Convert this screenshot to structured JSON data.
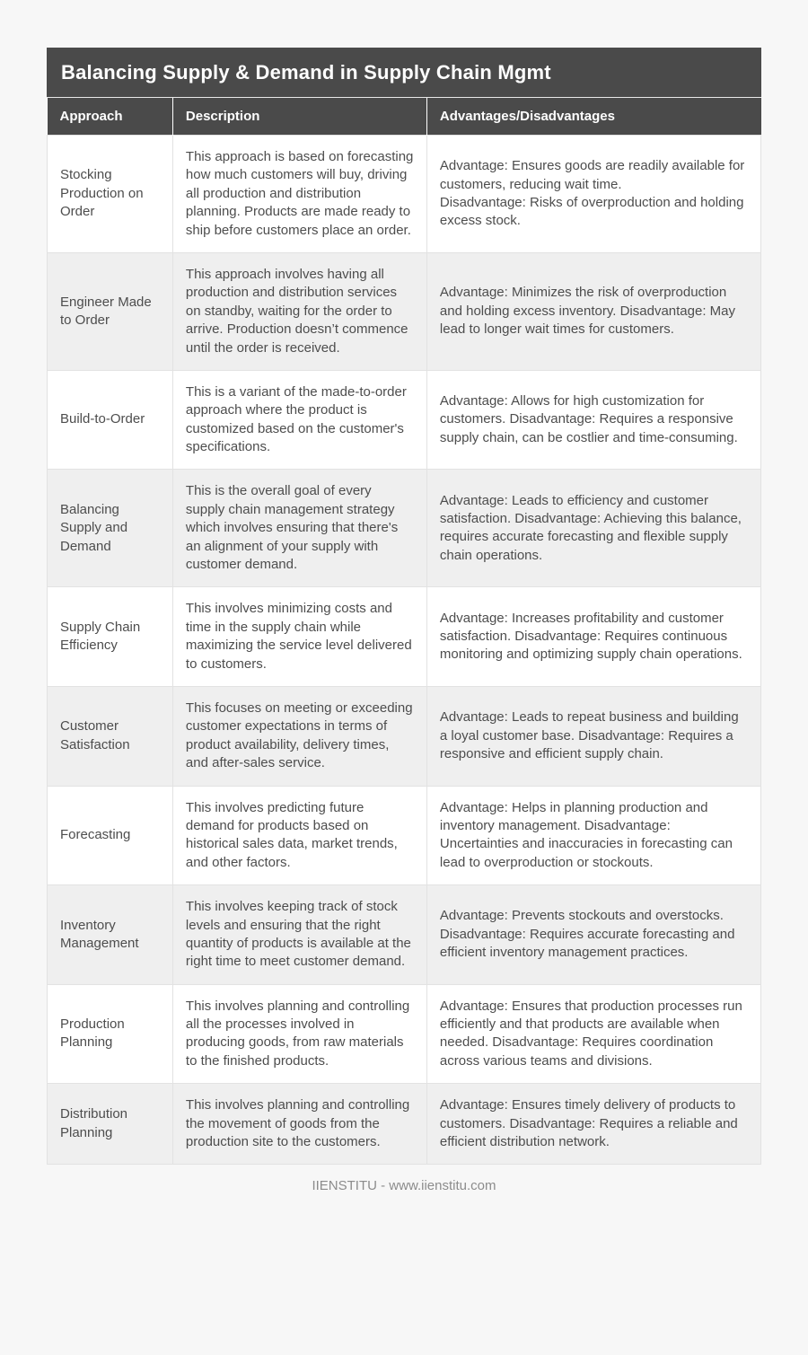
{
  "title": "Balancing Supply & Demand in Supply Chain Mgmt",
  "columns": [
    "Approach",
    "Description",
    "Advantages/Disadvantages"
  ],
  "rows": [
    {
      "approach": "Stocking Production on Order",
      "description": "This approach is based on forecasting how much customers will buy, driving all production and distribution planning. Products are made ready to ship before customers place an order.",
      "advantages": "Advantage: Ensures goods are readily available for customers, reducing wait time.\nDisadvantage: Risks of overproduction and holding excess stock."
    },
    {
      "approach": "Engineer Made to Order",
      "description": "This approach involves having all production and distribution services on standby, waiting for the order to arrive. Production doesn’t commence until the order is received.",
      "advantages": "Advantage: Minimizes the risk of overproduction and holding excess inventory. Disadvantage: May lead to longer wait times for customers."
    },
    {
      "approach": "Build-to-Order",
      "description": "This is a variant of the made-to-order approach where the product is customized based on the customer's specifications.",
      "advantages": "Advantage: Allows for high customization for customers. Disadvantage: Requires a responsive supply chain, can be costlier and time-consuming."
    },
    {
      "approach": "Balancing Supply and Demand",
      "description": "This is the overall goal of every supply chain management strategy which involves ensuring that there's an alignment of your supply with customer demand.",
      "advantages": "Advantage: Leads to efficiency and customer satisfaction. Disadvantage: Achieving this balance, requires accurate forecasting and flexible supply chain operations."
    },
    {
      "approach": "Supply Chain Efficiency",
      "description": "This involves minimizing costs and time in the supply chain while maximizing the service level delivered to customers.",
      "advantages": "Advantage: Increases profitability and customer satisfaction. Disadvantage: Requires continuous monitoring and optimizing supply chain operations."
    },
    {
      "approach": "Customer Satisfaction",
      "description": "This focuses on meeting or exceeding customer expectations in terms of product availability, delivery times, and after-sales service.",
      "advantages": "Advantage: Leads to repeat business and building a loyal customer base. Disadvantage: Requires a responsive and efficient supply chain."
    },
    {
      "approach": "Forecasting",
      "description": "This involves predicting future demand for products based on historical sales data, market trends, and other factors.",
      "advantages": "Advantage: Helps in planning production and inventory management. Disadvantage: Uncertainties and inaccuracies in forecasting can lead to overproduction or stockouts."
    },
    {
      "approach": "Inventory Management",
      "description": "This involves keeping track of stock levels and ensuring that the right quantity of products is available at the right time to meet customer demand.",
      "advantages": "Advantage: Prevents stockouts and overstocks. Disadvantage: Requires accurate forecasting and efficient inventory management practices."
    },
    {
      "approach": "Production Planning",
      "description": "This involves planning and controlling all the processes involved in producing goods, from raw materials to the finished products.",
      "advantages": "Advantage: Ensures that production processes run efficiently and that products are available when needed. Disadvantage: Requires coordination across various teams and divisions."
    },
    {
      "approach": "Distribution Planning",
      "description": "This involves planning and controlling the movement of goods from the production site to the customers.",
      "advantages": "Advantage: Ensures timely delivery of products to customers. Disadvantage: Requires a reliable and efficient distribution network."
    }
  ],
  "footer": "IIENSTITU - www.iienstitu.com",
  "colors": {
    "header_bg": "#4a4a4a",
    "header_text": "#ffffff",
    "row_alt_bg": "#efefef",
    "row_bg": "#ffffff",
    "page_bg": "#f7f7f7",
    "body_text": "#4d4d4d",
    "border": "#e2e2e2",
    "footer_text": "#8c8c8c"
  }
}
